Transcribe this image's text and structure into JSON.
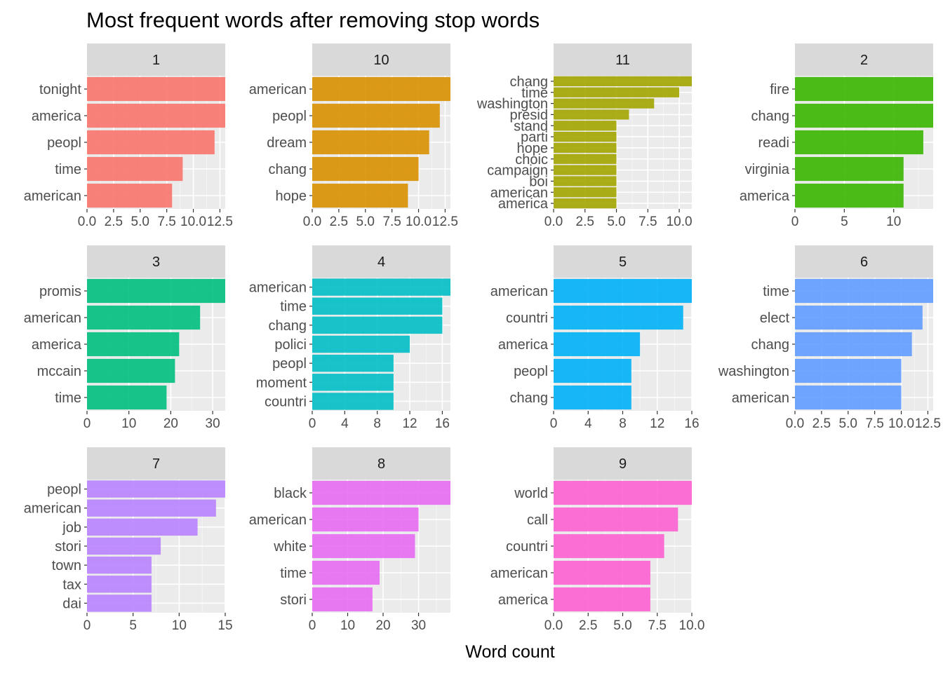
{
  "chart_data": {
    "type": "bar",
    "orientation": "horizontal",
    "title": "Most frequent words after removing stop words",
    "xlabel": "Word count",
    "ylabel": "",
    "grid": true,
    "legend": "none",
    "panels": [
      {
        "label": "1",
        "color": "#F8766D",
        "xlim": [
          0,
          13
        ],
        "ticks": [
          "0.0",
          "2.5",
          "5.0",
          "7.5",
          "10.0",
          "12.5"
        ],
        "tick_values": [
          0,
          2.5,
          5,
          7.5,
          10,
          12.5
        ],
        "categories": [
          "tonight",
          "america",
          "peopl",
          "time",
          "american"
        ],
        "values": [
          13,
          13,
          12,
          9,
          8
        ]
      },
      {
        "label": "10",
        "color": "#D89000",
        "xlim": [
          0,
          13
        ],
        "ticks": [
          "0.0",
          "2.5",
          "5.0",
          "7.5",
          "10.0",
          "12.5"
        ],
        "tick_values": [
          0,
          2.5,
          5,
          7.5,
          10,
          12.5
        ],
        "categories": [
          "american",
          "peopl",
          "dream",
          "chang",
          "hope"
        ],
        "values": [
          13,
          12,
          11,
          10,
          9
        ]
      },
      {
        "label": "11",
        "color": "#A3A500",
        "xlim": [
          0,
          11
        ],
        "ticks": [
          "0.0",
          "2.5",
          "5.0",
          "7.5",
          "10.0"
        ],
        "tick_values": [
          0,
          2.5,
          5,
          7.5,
          10
        ],
        "categories": [
          "chang",
          "time",
          "washington",
          "presid",
          "stand",
          "parti",
          "hope",
          "choic",
          "campaign",
          "boi",
          "american",
          "america"
        ],
        "values": [
          11,
          10,
          8,
          6,
          5,
          5,
          5,
          5,
          5,
          5,
          5,
          5
        ]
      },
      {
        "label": "2",
        "color": "#39B600",
        "xlim": [
          0,
          14
        ],
        "ticks": [
          "0",
          "5",
          "10"
        ],
        "tick_values": [
          0,
          5,
          10
        ],
        "categories": [
          "fire",
          "chang",
          "readi",
          "virginia",
          "america"
        ],
        "values": [
          14,
          14,
          13,
          11,
          11
        ]
      },
      {
        "label": "3",
        "color": "#00BF7D",
        "xlim": [
          0,
          33
        ],
        "ticks": [
          "0",
          "10",
          "20",
          "30"
        ],
        "tick_values": [
          0,
          10,
          20,
          30
        ],
        "categories": [
          "promis",
          "american",
          "america",
          "mccain",
          "time"
        ],
        "values": [
          33,
          27,
          22,
          21,
          19
        ]
      },
      {
        "label": "4",
        "color": "#00BFC4",
        "xlim": [
          0,
          17
        ],
        "ticks": [
          "0",
          "4",
          "8",
          "12",
          "16"
        ],
        "tick_values": [
          0,
          4,
          8,
          12,
          16
        ],
        "categories": [
          "american",
          "time",
          "chang",
          "polici",
          "peopl",
          "moment",
          "countri"
        ],
        "values": [
          17,
          16,
          16,
          12,
          10,
          10,
          10
        ]
      },
      {
        "label": "5",
        "color": "#00B0F6",
        "xlim": [
          0,
          16
        ],
        "ticks": [
          "0",
          "4",
          "8",
          "12",
          "16"
        ],
        "tick_values": [
          0,
          4,
          8,
          12,
          16
        ],
        "categories": [
          "american",
          "countri",
          "america",
          "peopl",
          "chang"
        ],
        "values": [
          16,
          15,
          10,
          9,
          9
        ]
      },
      {
        "label": "6",
        "color": "#619CFF",
        "xlim": [
          0,
          13
        ],
        "ticks": [
          "0.0",
          "2.5",
          "5.0",
          "7.5",
          "10.0",
          "12.5"
        ],
        "tick_values": [
          0,
          2.5,
          5,
          7.5,
          10,
          12.5
        ],
        "categories": [
          "time",
          "elect",
          "chang",
          "washington",
          "american"
        ],
        "values": [
          13,
          12,
          11,
          10,
          10
        ]
      },
      {
        "label": "7",
        "color": "#B983FF",
        "xlim": [
          0,
          15
        ],
        "ticks": [
          "0",
          "5",
          "10",
          "15"
        ],
        "tick_values": [
          0,
          5,
          10,
          15
        ],
        "categories": [
          "peopl",
          "american",
          "job",
          "stori",
          "town",
          "tax",
          "dai"
        ],
        "values": [
          15,
          14,
          12,
          8,
          7,
          7,
          7
        ]
      },
      {
        "label": "8",
        "color": "#E76BF3",
        "xlim": [
          0,
          39
        ],
        "ticks": [
          "0",
          "10",
          "20",
          "30"
        ],
        "tick_values": [
          0,
          10,
          20,
          30
        ],
        "categories": [
          "black",
          "american",
          "white",
          "time",
          "stori"
        ],
        "values": [
          39,
          30,
          29,
          19,
          17
        ]
      },
      {
        "label": "9",
        "color": "#FD61D1",
        "xlim": [
          0,
          10
        ],
        "ticks": [
          "0.0",
          "2.5",
          "5.0",
          "7.5",
          "10.0"
        ],
        "tick_values": [
          0,
          2.5,
          5,
          7.5,
          10
        ],
        "categories": [
          "world",
          "call",
          "countri",
          "american",
          "america"
        ],
        "values": [
          10,
          9,
          8,
          7,
          7
        ]
      }
    ]
  }
}
